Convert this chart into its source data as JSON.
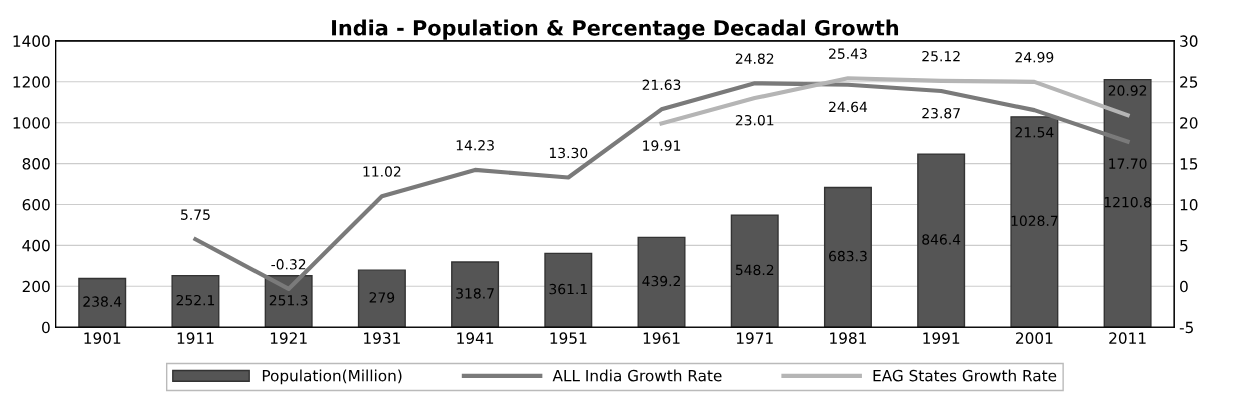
{
  "chart_data": {
    "type": "bar",
    "title": "India - Population & Percentage Decadal Growth",
    "categories": [
      "1901",
      "1911",
      "1921",
      "1931",
      "1941",
      "1951",
      "1961",
      "1971",
      "1981",
      "1991",
      "2001",
      "2011"
    ],
    "series": [
      {
        "name": "Population(Million)",
        "color": "#555555",
        "values": [
          238.4,
          252.1,
          251.3,
          279,
          318.7,
          361.1,
          439.2,
          548.2,
          683.3,
          846.4,
          1028.7,
          1210.8
        ],
        "value_labels": [
          "238.4",
          "252.1",
          "251.3",
          "279",
          "318.7",
          "361.1",
          "439.2",
          "548.2",
          "683.3",
          "846.4",
          "1028.7",
          "1210.8"
        ]
      },
      {
        "name": "ALL India Growth Rate",
        "type": "line",
        "axis": "y2",
        "color": "#7a7a7a",
        "values": [
          null,
          5.75,
          -0.32,
          11.02,
          14.23,
          13.3,
          21.63,
          24.82,
          24.64,
          23.87,
          21.54,
          17.7
        ],
        "value_labels": [
          null,
          "5.75",
          "-0.32",
          "11.02",
          "14.23",
          "13.30",
          "21.63",
          "24.82",
          "24.64",
          "23.87",
          "21.54",
          "17.70"
        ]
      },
      {
        "name": "EAG States Growth Rate",
        "type": "line",
        "axis": "y2",
        "color": "#b5b5b5",
        "values": [
          null,
          null,
          null,
          null,
          null,
          null,
          19.91,
          23.01,
          25.43,
          25.12,
          24.99,
          20.92
        ],
        "value_labels": [
          null,
          null,
          null,
          null,
          null,
          null,
          "19.91",
          "23.01",
          "25.43",
          "25.12",
          "24.99",
          "20.92"
        ]
      }
    ],
    "ylim": [
      0,
      1400
    ],
    "yticks": [
      0,
      200,
      400,
      600,
      800,
      1000,
      1200,
      1400
    ],
    "y2lim": [
      -5,
      30
    ],
    "y2ticks": [
      -5,
      0,
      5,
      10,
      15,
      20,
      25,
      30
    ],
    "grid": "y",
    "legend": "bottom",
    "marker": "none",
    "line_style": "solid"
  }
}
